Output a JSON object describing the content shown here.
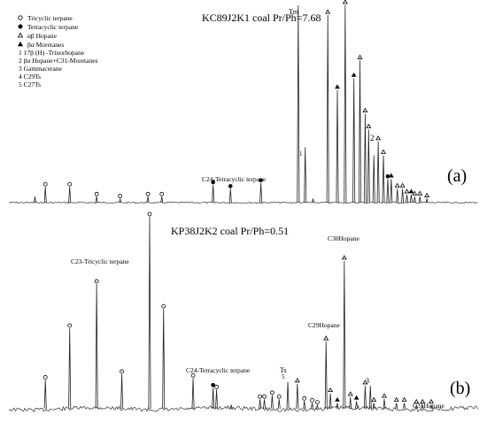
{
  "legend": {
    "items": [
      {
        "symbol": "circle-open",
        "label": "Tricyclic terpane"
      },
      {
        "symbol": "circle-filled",
        "label": "Tetracyclic terpane"
      },
      {
        "symbol": "triangle-open",
        "label": "αβ Hopane"
      },
      {
        "symbol": "triangle-filled",
        "label": "βα Moretanes"
      },
      {
        "symbol": "",
        "label": "1 17β (H) -Trinorhopane"
      },
      {
        "symbol": "",
        "label": "2 βα Hopane+C31-Moretanes"
      },
      {
        "symbol": "",
        "label": "3 Gammacerane"
      },
      {
        "symbol": "",
        "label": "4 C29Ts"
      },
      {
        "symbol": "",
        "label": "5 C27Ts"
      }
    ]
  },
  "panels": {
    "a": {
      "title": "KC89J2K1 coal Pr/Ph=7.68",
      "tag": "(a)",
      "annotations": {
        "tm": "Tm",
        "c24": "C24-Tetracyclic terpane",
        "label1": "1",
        "label2": "2"
      }
    },
    "b": {
      "title": "KP38J2K2 coal Pr/Ph=0.51",
      "tag": "(b)",
      "annotations": {
        "c23": "C23-Tricyclic terpane",
        "c24": "C24-Tetracyclic terpane",
        "ts": "Ts",
        "c29": "C29Hopane",
        "c30": "C30Hopane",
        "c31": "C31Hopane",
        "label5": "5",
        "label3": "3"
      }
    }
  },
  "chart_data": [
    {
      "type": "line",
      "panel": "a",
      "title": "KC89J2K1 coal Pr/Ph=7.68",
      "xlabel": "",
      "ylabel": "",
      "x_range": [
        0,
        540
      ],
      "y_range": [
        0,
        100
      ],
      "peaks": [
        {
          "x": 30,
          "h": 3,
          "m": ""
        },
        {
          "x": 42,
          "h": 8,
          "m": "circle-open"
        },
        {
          "x": 70,
          "h": 8,
          "m": "circle-open"
        },
        {
          "x": 101,
          "h": 3,
          "m": "circle-open"
        },
        {
          "x": 128,
          "h": 2,
          "m": "circle-open"
        },
        {
          "x": 160,
          "h": 3,
          "m": "circle-open"
        },
        {
          "x": 176,
          "h": 3,
          "m": "circle-open"
        },
        {
          "x": 235,
          "h": 9,
          "m": "circle-filled"
        },
        {
          "x": 255,
          "h": 7,
          "m": "circle-filled"
        },
        {
          "x": 290,
          "h": 10,
          "m": "circle-filled"
        },
        {
          "x": 333,
          "h": 100,
          "m": ""
        },
        {
          "x": 341,
          "h": 28,
          "m": ""
        },
        {
          "x": 350,
          "h": 2,
          "m": ""
        },
        {
          "x": 367,
          "h": 95,
          "m": "triangle-open"
        },
        {
          "x": 378,
          "h": 57,
          "m": "triangle-filled"
        },
        {
          "x": 387,
          "h": 100,
          "m": "triangle-open"
        },
        {
          "x": 397,
          "h": 63,
          "m": "triangle-filled"
        },
        {
          "x": 404,
          "h": 72,
          "m": "triangle-open"
        },
        {
          "x": 410,
          "h": 45,
          "m": "triangle-open"
        },
        {
          "x": 414,
          "h": 37,
          "m": "triangle-open"
        },
        {
          "x": 420,
          "h": 24,
          "m": ""
        },
        {
          "x": 425,
          "h": 31,
          "m": "triangle-open"
        },
        {
          "x": 431,
          "h": 24,
          "m": "triangle-open"
        },
        {
          "x": 436,
          "h": 12,
          "m": "circle-filled"
        },
        {
          "x": 440,
          "h": 12,
          "m": "triangle-filled"
        },
        {
          "x": 447,
          "h": 7,
          "m": "triangle-open"
        },
        {
          "x": 453,
          "h": 7,
          "m": "triangle-open"
        },
        {
          "x": 458,
          "h": 4,
          "m": "triangle-open"
        },
        {
          "x": 463,
          "h": 4,
          "m": "triangle-filled"
        },
        {
          "x": 467,
          "h": 3,
          "m": "triangle-open"
        },
        {
          "x": 473,
          "h": 3,
          "m": "triangle-open"
        },
        {
          "x": 481,
          "h": 2,
          "m": "triangle-open"
        }
      ]
    },
    {
      "type": "line",
      "panel": "b",
      "title": "KP38J2K2 coal Pr/Ph=0.51",
      "xlabel": "",
      "ylabel": "",
      "x_range": [
        0,
        540
      ],
      "y_range": [
        0,
        100
      ],
      "peaks": [
        {
          "x": 42,
          "h": 15,
          "m": "circle-open"
        },
        {
          "x": 70,
          "h": 42,
          "m": "circle-open"
        },
        {
          "x": 101,
          "h": 65,
          "m": "circle-open"
        },
        {
          "x": 130,
          "h": 18,
          "m": "circle-open"
        },
        {
          "x": 162,
          "h": 100,
          "m": "circle-open"
        },
        {
          "x": 178,
          "h": 52,
          "m": "circle-open"
        },
        {
          "x": 212,
          "h": 16,
          "m": "circle-open"
        },
        {
          "x": 235,
          "h": 11,
          "m": "circle-filled"
        },
        {
          "x": 239,
          "h": 10,
          "m": "circle-open"
        },
        {
          "x": 256,
          "h": 2,
          "m": ""
        },
        {
          "x": 289,
          "h": 5,
          "m": "circle-open"
        },
        {
          "x": 294,
          "h": 5,
          "m": "circle-open"
        },
        {
          "x": 303,
          "h": 7,
          "m": "circle-open"
        },
        {
          "x": 311,
          "h": 5,
          "m": "circle-open"
        },
        {
          "x": 321,
          "h": 14,
          "m": ""
        },
        {
          "x": 332,
          "h": 13,
          "m": "triangle-open"
        },
        {
          "x": 340,
          "h": 4,
          "m": "circle-open"
        },
        {
          "x": 349,
          "h": 3,
          "m": "circle-open"
        },
        {
          "x": 355,
          "h": 2,
          "m": "circle-open"
        },
        {
          "x": 365,
          "h": 35,
          "m": "triangle-open"
        },
        {
          "x": 370,
          "h": 8,
          "m": "triangle-open"
        },
        {
          "x": 378,
          "h": 3,
          "m": "triangle-filled"
        },
        {
          "x": 386,
          "h": 77,
          "m": "triangle-open"
        },
        {
          "x": 393,
          "h": 6,
          "m": "triangle-open"
        },
        {
          "x": 400,
          "h": 4,
          "m": "triangle-filled"
        },
        {
          "x": 410,
          "h": 12,
          "m": "triangle-open"
        },
        {
          "x": 416,
          "h": 12,
          "m": ""
        },
        {
          "x": 420,
          "h": 3,
          "m": "triangle-open"
        },
        {
          "x": 432,
          "h": 5,
          "m": "triangle-open"
        },
        {
          "x": 446,
          "h": 3,
          "m": "triangle-open"
        },
        {
          "x": 455,
          "h": 3,
          "m": "triangle-open"
        },
        {
          "x": 469,
          "h": 2,
          "m": "triangle-open"
        },
        {
          "x": 476,
          "h": 2,
          "m": "triangle-open"
        },
        {
          "x": 486,
          "h": 2,
          "m": "triangle-open"
        }
      ]
    }
  ]
}
